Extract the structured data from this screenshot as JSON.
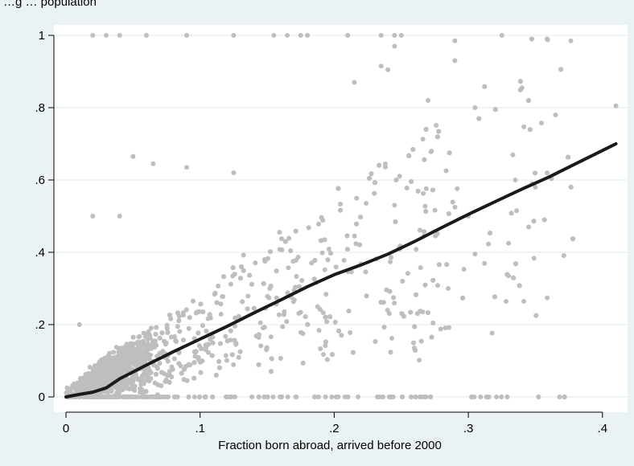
{
  "header": {
    "text": "…g  …  population"
  },
  "chart_data": {
    "type": "scatter",
    "title": "",
    "xlabel": "Fraction born abroad, arrived before 2000",
    "ylabel": "",
    "xlim": [
      0,
      0.41
    ],
    "ylim": [
      0,
      1
    ],
    "x_ticks": [
      {
        "value": 0,
        "label": "0"
      },
      {
        "value": 0.1,
        "label": ".1"
      },
      {
        "value": 0.2,
        "label": ".2"
      },
      {
        "value": 0.3,
        "label": ".3"
      },
      {
        "value": 0.4,
        "label": ".4"
      }
    ],
    "y_ticks": [
      {
        "value": 0,
        "label": "0"
      },
      {
        "value": 0.2,
        "label": ".2"
      },
      {
        "value": 0.4,
        "label": ".4"
      },
      {
        "value": 0.6,
        "label": ".6"
      },
      {
        "value": 0.8,
        "label": ".8"
      },
      {
        "value": 1,
        "label": "1"
      }
    ],
    "grid": true,
    "legend": "none",
    "colors": {
      "background": "#eaf2f3",
      "plot_area": "#ffffff",
      "points": "#bebebe",
      "fit_line": "#1a1a1a",
      "grid": "#eaf2f3"
    },
    "series": [
      {
        "kind": "points",
        "note_estimated": "approximately 2500 observations; summary samples below",
        "values": [
          [
            0.02,
            1
          ],
          [
            0.03,
            1
          ],
          [
            0.04,
            1
          ],
          [
            0.06,
            1
          ],
          [
            0.09,
            1
          ],
          [
            0.125,
            1
          ],
          [
            0.155,
            1
          ],
          [
            0.165,
            1
          ],
          [
            0.175,
            1
          ],
          [
            0.18,
            1
          ],
          [
            0.21,
            1
          ],
          [
            0.235,
            1
          ],
          [
            0.245,
            1
          ],
          [
            0.25,
            1
          ],
          [
            0.325,
            1
          ],
          [
            0.245,
            0.97
          ],
          [
            0.29,
            0.985
          ],
          [
            0.29,
            0.93
          ],
          [
            0.235,
            0.915
          ],
          [
            0.24,
            0.905
          ],
          [
            0.215,
            0.87
          ],
          [
            0.27,
            0.82
          ],
          [
            0.41,
            0.805
          ],
          [
            0.305,
            0.8
          ],
          [
            0.34,
            0.855
          ],
          [
            0.345,
            0.82
          ],
          [
            0.365,
            0.78
          ],
          [
            0.05,
            0.665
          ],
          [
            0.065,
            0.645
          ],
          [
            0.09,
            0.635
          ],
          [
            0.125,
            0.62
          ],
          [
            0.335,
            0.6
          ],
          [
            0.35,
            0.58
          ],
          [
            0.345,
            0.47
          ],
          [
            0.3,
            0.5
          ],
          [
            0.02,
            0.5
          ],
          [
            0.04,
            0.5
          ],
          [
            0.01,
            0.2
          ],
          [
            0.265,
            0
          ],
          [
            0.33,
            0.425
          ],
          [
            0.285,
            0.3
          ],
          [
            0.33,
            0.335
          ],
          [
            0.305,
            0.395
          ]
        ]
      },
      {
        "kind": "fit_line",
        "values": [
          [
            0,
            0
          ],
          [
            0.01,
            0.007
          ],
          [
            0.02,
            0.013
          ],
          [
            0.03,
            0.025
          ],
          [
            0.04,
            0.05
          ],
          [
            0.06,
            0.088
          ],
          [
            0.08,
            0.125
          ],
          [
            0.1,
            0.16
          ],
          [
            0.12,
            0.195
          ],
          [
            0.14,
            0.232
          ],
          [
            0.16,
            0.268
          ],
          [
            0.18,
            0.305
          ],
          [
            0.2,
            0.338
          ],
          [
            0.22,
            0.365
          ],
          [
            0.24,
            0.395
          ],
          [
            0.26,
            0.43
          ],
          [
            0.28,
            0.468
          ],
          [
            0.3,
            0.505
          ],
          [
            0.32,
            0.54
          ],
          [
            0.34,
            0.575
          ],
          [
            0.36,
            0.608
          ],
          [
            0.38,
            0.645
          ],
          [
            0.41,
            0.7
          ]
        ]
      }
    ]
  }
}
